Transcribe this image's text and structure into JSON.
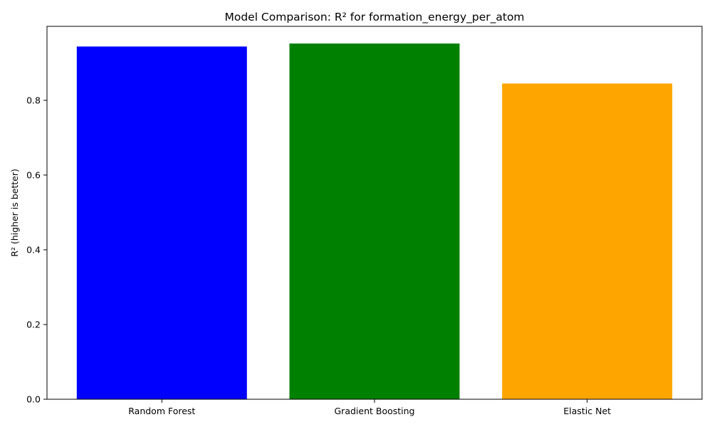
{
  "chart_data": {
    "type": "bar",
    "title": "Model Comparison: R² for formation_energy_per_atom",
    "xlabel": "",
    "ylabel": "R² (higher is better)",
    "categories": [
      "Random Forest",
      "Gradient Boosting",
      "Elastic Net"
    ],
    "values": [
      0.944,
      0.952,
      0.845
    ],
    "colors": [
      "#0000ff",
      "#008000",
      "#ffa500"
    ],
    "ylim": [
      0,
      0.998
    ],
    "yticks": [
      "0.0",
      "0.2",
      "0.4",
      "0.6",
      "0.8"
    ],
    "grid": false,
    "legend": "none"
  }
}
